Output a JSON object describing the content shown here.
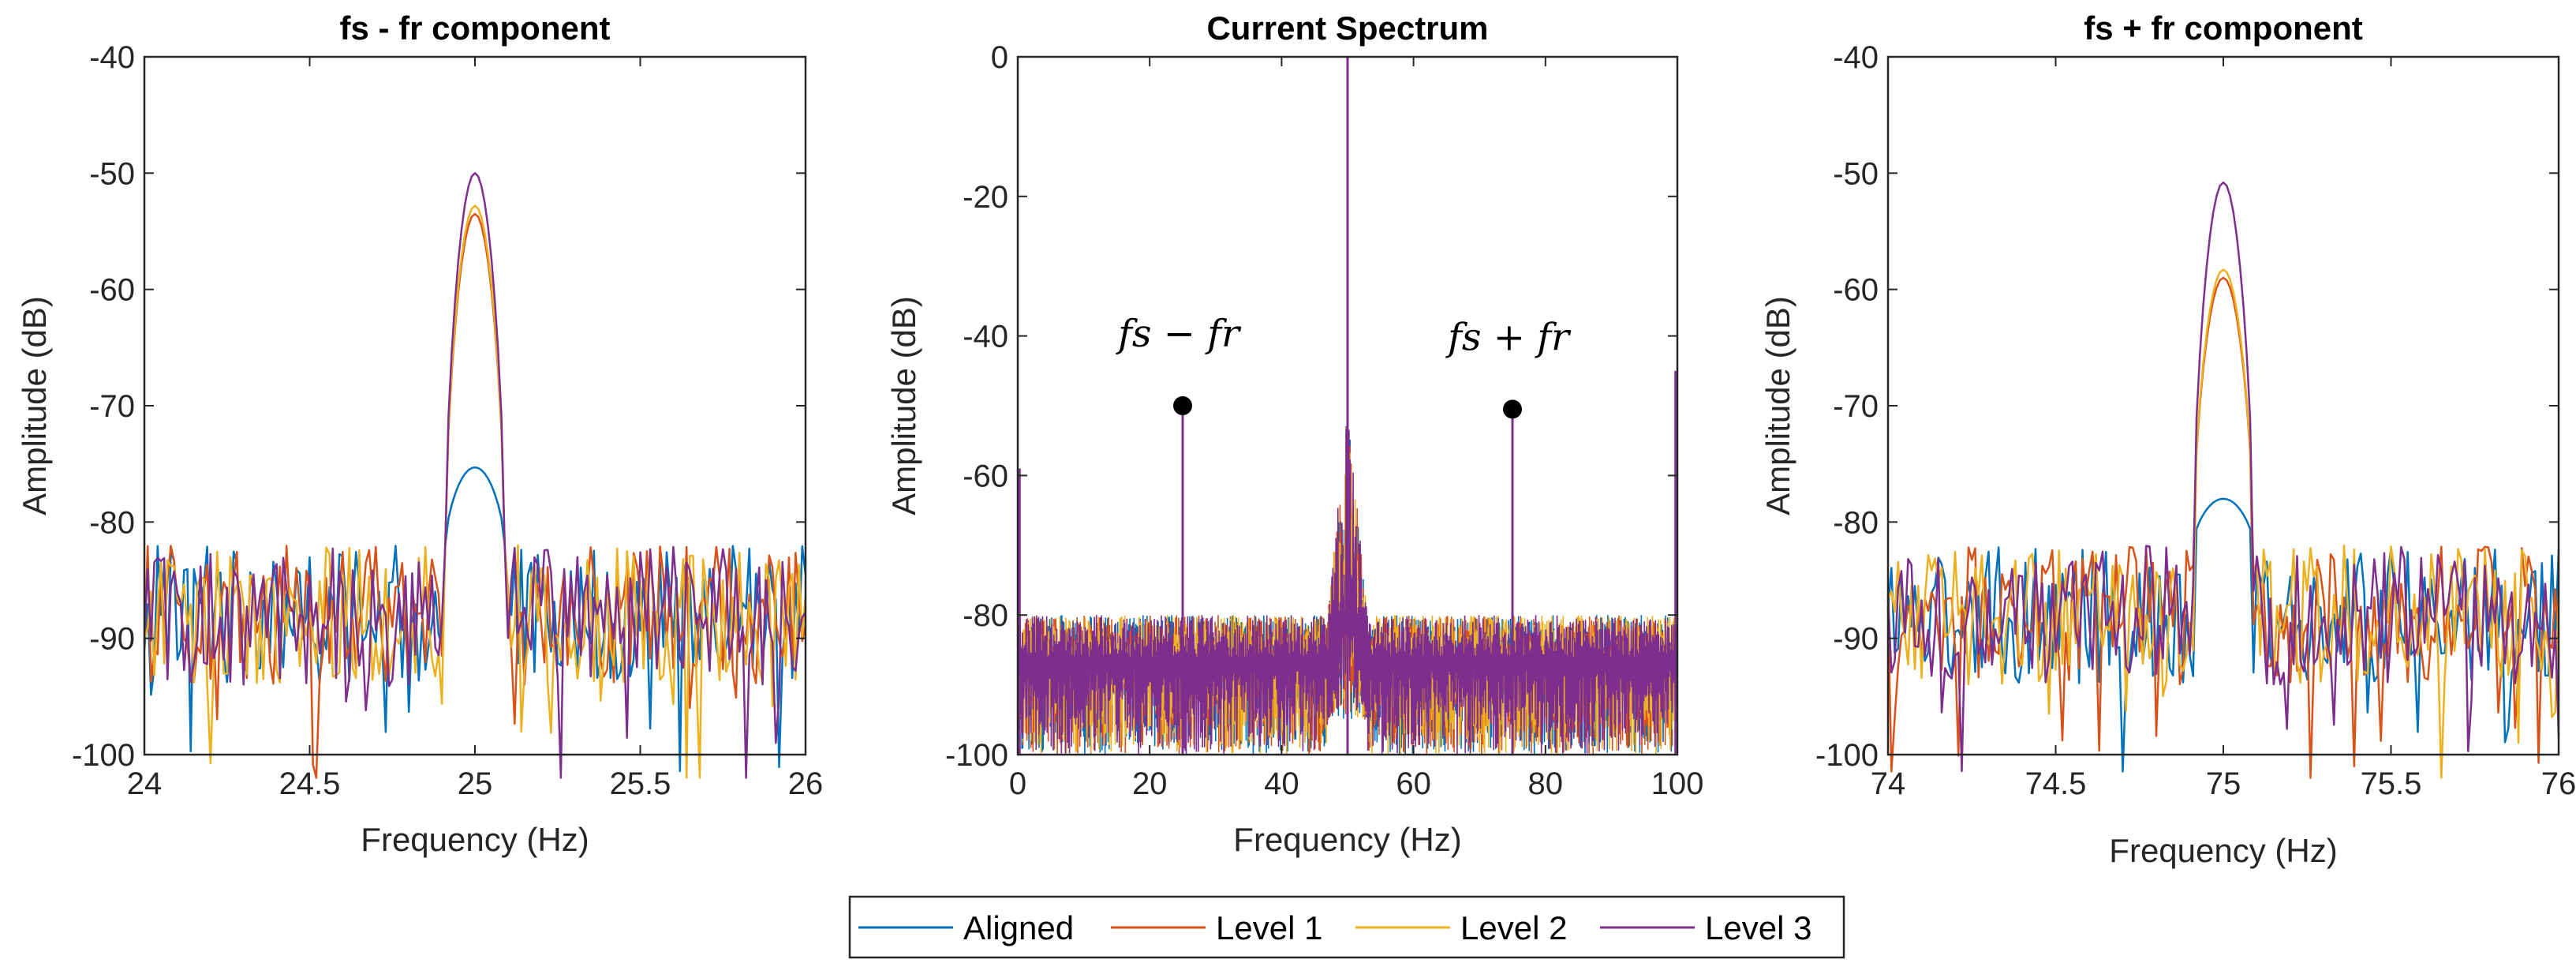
{
  "colors": {
    "Aligned": "#0072BD",
    "Level 1": "#D95319",
    "Level 2": "#EDB120",
    "Level 3": "#7E2F8E",
    "axis": "#262626"
  },
  "legend": {
    "placement": "bottom-center",
    "entries": [
      "Aligned",
      "Level 1",
      "Level 2",
      "Level 3"
    ]
  },
  "chart_data": [
    {
      "type": "line",
      "title": "fs - fr component",
      "xlabel": "Frequency (Hz)",
      "ylabel": "Amplitude (dB)",
      "xlim": [
        24,
        26
      ],
      "ylim": [
        -100,
        -40
      ],
      "xticks": [
        24,
        24.5,
        25,
        25.5,
        26
      ],
      "xtick_labels": [
        "24",
        "24.5",
        "25",
        "25.5",
        "26"
      ],
      "yticks": [
        -40,
        -50,
        -60,
        -70,
        -80,
        -90,
        -100
      ],
      "ytick_labels": [
        "-40",
        "-50",
        "-60",
        "-70",
        "-80",
        "-90",
        "-100"
      ],
      "peak_x": 25,
      "noise_band": [
        -100,
        -80
      ],
      "series": [
        {
          "name": "Aligned",
          "peak": -75.3
        },
        {
          "name": "Level 1",
          "peak": -53.5
        },
        {
          "name": "Level 2",
          "peak": -52.8
        },
        {
          "name": "Level 3",
          "peak": -50.0
        }
      ]
    },
    {
      "type": "line",
      "title": "Current Spectrum",
      "xlabel": "Frequency (Hz)",
      "ylabel": "Amplitude (dB)",
      "xlim": [
        0,
        100
      ],
      "ylim": [
        -100,
        0
      ],
      "xticks": [
        0,
        20,
        40,
        60,
        80,
        100
      ],
      "xtick_labels": [
        "0",
        "20",
        "40",
        "60",
        "80",
        "100"
      ],
      "yticks": [
        0,
        -20,
        -40,
        -60,
        -80,
        -100
      ],
      "ytick_labels": [
        "0",
        "-20",
        "-40",
        "-60",
        "-80",
        "-100"
      ],
      "fundamental_x": 50,
      "fundamental_peak": 0,
      "noise_band": [
        -100,
        -80
      ],
      "markers": [
        {
          "x": 25,
          "y": -50,
          "label": "fs − fr"
        },
        {
          "x": 75,
          "y": -50.5,
          "label": "fs + fr"
        }
      ],
      "series_names": [
        "Aligned",
        "Level 1",
        "Level 2",
        "Level 3"
      ]
    },
    {
      "type": "line",
      "title": "fs + fr component",
      "xlabel": "Frequency (Hz)",
      "ylabel": "Amplitude (dB)",
      "xlim": [
        74,
        76
      ],
      "ylim": [
        -100,
        -40
      ],
      "xticks": [
        74,
        74.5,
        75,
        75.5,
        76
      ],
      "xtick_labels": [
        "74",
        "74.5",
        "75",
        "75.5",
        "76"
      ],
      "yticks": [
        -40,
        -50,
        -60,
        -70,
        -80,
        -90,
        -100
      ],
      "ytick_labels": [
        "-40",
        "-50",
        "-60",
        "-70",
        "-80",
        "-90",
        "-100"
      ],
      "peak_x": 75,
      "noise_band": [
        -100,
        -79
      ],
      "series": [
        {
          "name": "Aligned",
          "peak": -78.0
        },
        {
          "name": "Level 1",
          "peak": -59.0
        },
        {
          "name": "Level 2",
          "peak": -58.3
        },
        {
          "name": "Level 3",
          "peak": -50.8
        }
      ]
    }
  ]
}
